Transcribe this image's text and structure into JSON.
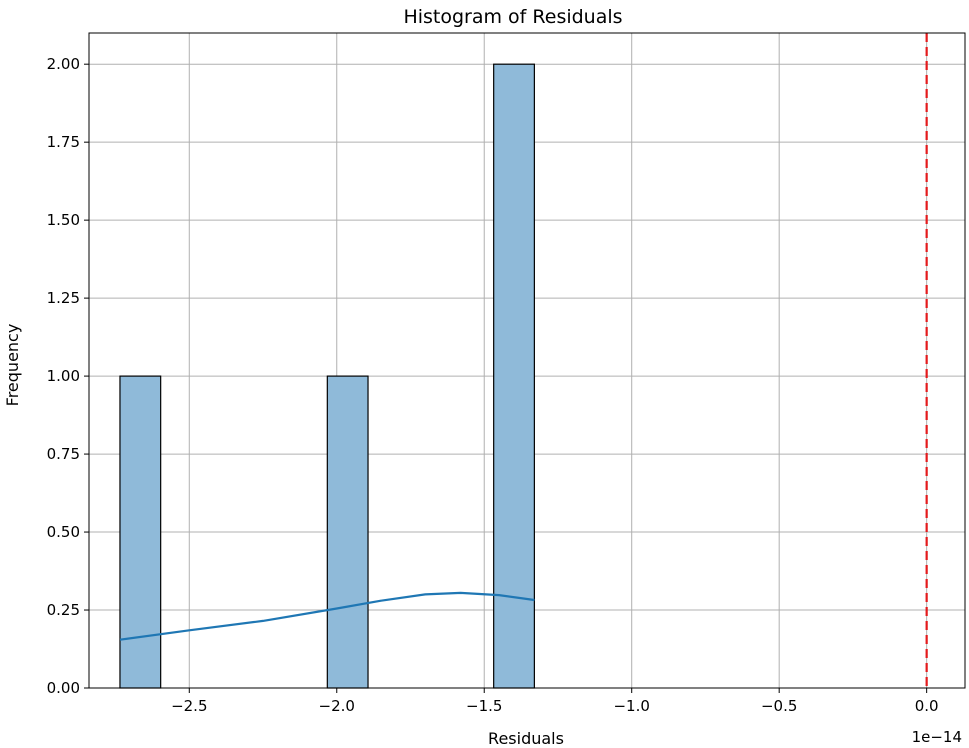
{
  "chart_data": {
    "type": "bar",
    "title": "Histogram of Residuals",
    "xlabel": "Residuals",
    "ylabel": "Frequency",
    "x_offset_label": "1e−14",
    "xlim": [
      -2.84,
      0.13
    ],
    "ylim": [
      0,
      2.1
    ],
    "grid": true,
    "xticks": [
      {
        "value": -2.5,
        "label": "−2.5"
      },
      {
        "value": -2.0,
        "label": "−2.0"
      },
      {
        "value": -1.5,
        "label": "−1.5"
      },
      {
        "value": -1.0,
        "label": "−1.0"
      },
      {
        "value": -0.5,
        "label": "−0.5"
      },
      {
        "value": 0.0,
        "label": "0.0"
      }
    ],
    "yticks": [
      {
        "value": 0.0,
        "label": "0.00"
      },
      {
        "value": 0.25,
        "label": "0.25"
      },
      {
        "value": 0.5,
        "label": "0.50"
      },
      {
        "value": 0.75,
        "label": "0.75"
      },
      {
        "value": 1.0,
        "label": "1.00"
      },
      {
        "value": 1.25,
        "label": "1.25"
      },
      {
        "value": 1.5,
        "label": "1.50"
      },
      {
        "value": 1.75,
        "label": "1.75"
      },
      {
        "value": 2.0,
        "label": "2.00"
      }
    ],
    "bins": [
      {
        "x0": -2.735,
        "x1": -2.597,
        "count": 1
      },
      {
        "x0": -2.032,
        "x1": -1.894,
        "count": 1
      },
      {
        "x0": -1.468,
        "x1": -1.33,
        "count": 2
      }
    ],
    "kde": [
      {
        "x": -2.735,
        "y": 0.155
      },
      {
        "x": -2.5,
        "y": 0.185
      },
      {
        "x": -2.25,
        "y": 0.215
      },
      {
        "x": -2.0,
        "y": 0.255
      },
      {
        "x": -1.85,
        "y": 0.28
      },
      {
        "x": -1.7,
        "y": 0.3
      },
      {
        "x": -1.58,
        "y": 0.305
      },
      {
        "x": -1.45,
        "y": 0.298
      },
      {
        "x": -1.33,
        "y": 0.282
      }
    ],
    "reference_line": {
      "x": 0.0,
      "color": "#e41a1c",
      "style": "dashed"
    },
    "colors": {
      "bar_fill": "#8fbad9",
      "bar_edge": "#000000",
      "kde": "#1f77b4",
      "grid": "#b0b0b0"
    }
  }
}
